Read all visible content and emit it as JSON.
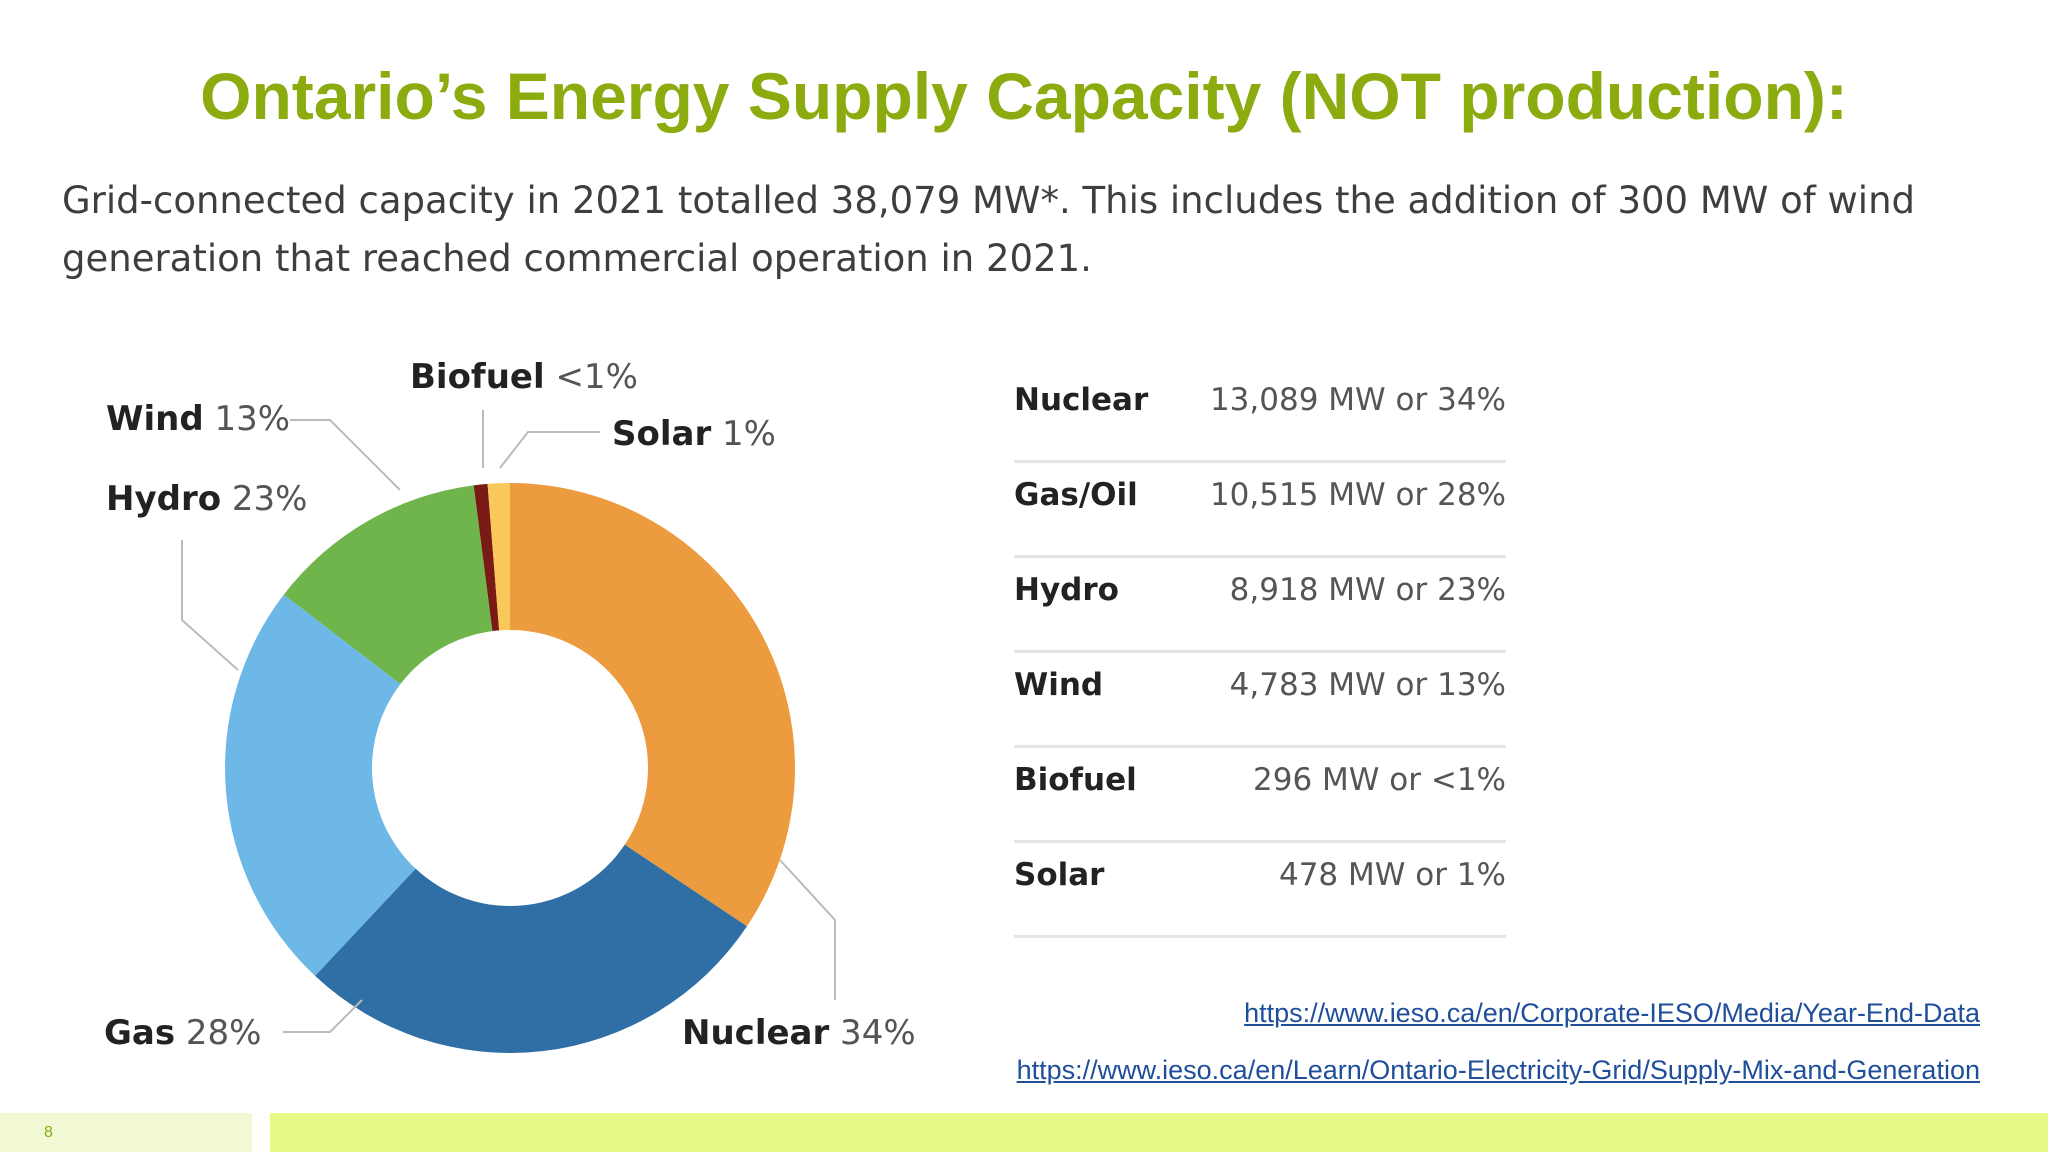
{
  "slide": {
    "title": "Ontario’s Energy Supply Capacity (NOT production):",
    "subtitle": "Grid-connected capacity in 2021 totalled 38,079 MW*. This includes the addition of 300 MW of wind generation that reached commercial operation in 2021.",
    "page_number": "8",
    "links": [
      "https://www.ieso.ca/en/Corporate-IESO/Media/Year-End-Data",
      "https://www.ieso.ca/en/Learn/Ontario-Electricity-Grid/Supply-Mix-and-Generation"
    ]
  },
  "colors": {
    "title": "#8bab0f",
    "Nuclear": "#ec9c3e",
    "Gas": "#2f6fa6",
    "Hydro": "#6db8e6",
    "Wind": "#6fb54b",
    "Biofuel": "#7a1a14",
    "Solar": "#f8c85a"
  },
  "chart_data": {
    "type": "pie",
    "title": "",
    "categories": [
      "Nuclear",
      "Gas",
      "Hydro",
      "Wind",
      "Biofuel",
      "Solar"
    ],
    "values": [
      13089,
      10515,
      8918,
      4783,
      296,
      478
    ],
    "units": "MW",
    "labels": [
      {
        "name": "Nuclear",
        "pct": "34%"
      },
      {
        "name": "Gas",
        "pct": "28%"
      },
      {
        "name": "Hydro",
        "pct": "23%"
      },
      {
        "name": "Wind",
        "pct": "13%"
      },
      {
        "name": "Biofuel",
        "pct": "<1%"
      },
      {
        "name": "Solar",
        "pct": "1%"
      }
    ],
    "donut": true
  },
  "table": {
    "rows": [
      {
        "name": "Nuclear",
        "value": "13,089 MW or 34%"
      },
      {
        "name": "Gas/Oil",
        "value": "10,515 MW or 28%"
      },
      {
        "name": "Hydro",
        "value": "8,918 MW or 23%"
      },
      {
        "name": "Wind",
        "value": "4,783 MW or 13%"
      },
      {
        "name": "Biofuel",
        "value": "296 MW or <1%"
      },
      {
        "name": "Solar",
        "value": "478 MW or 1%"
      }
    ]
  }
}
